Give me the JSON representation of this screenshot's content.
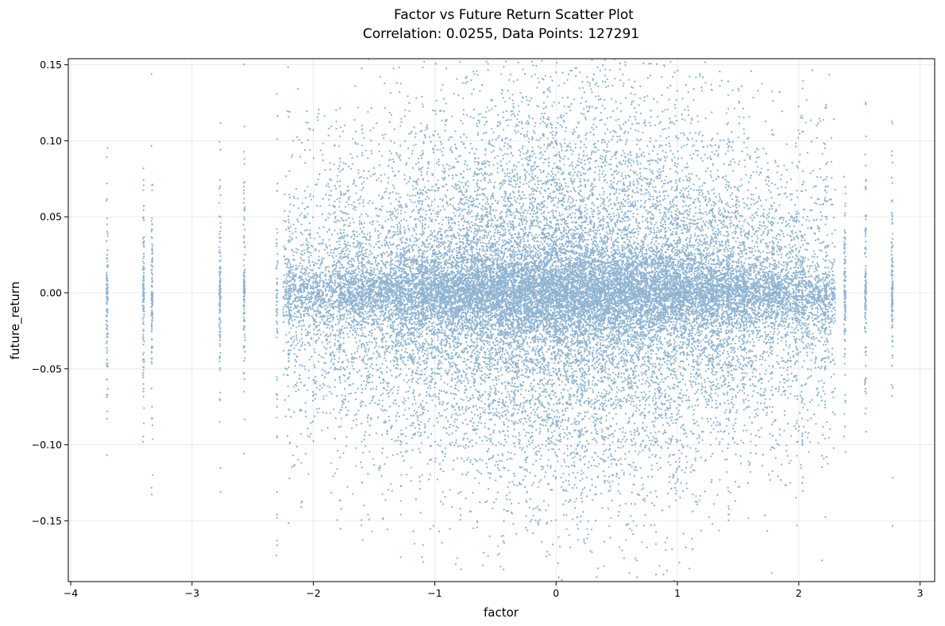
{
  "chart_data": {
    "type": "scatter",
    "title": "Factor vs Future Return Scatter Plot",
    "subtitle": "Correlation: 0.0255, Data Points: 127291",
    "xlabel": "factor",
    "ylabel": "future_return",
    "xlim": [
      -4.02,
      3.12
    ],
    "ylim": [
      -0.19,
      0.154
    ],
    "xticks": [
      -4,
      -3,
      -2,
      -1,
      0,
      1,
      2,
      3
    ],
    "xtick_labels": [
      "−4",
      "−3",
      "−2",
      "−1",
      "0",
      "1",
      "2",
      "3"
    ],
    "yticks": [
      -0.15,
      -0.1,
      -0.05,
      0.0,
      0.05,
      0.1,
      0.15
    ],
    "ytick_labels": [
      "−0.15",
      "−0.10",
      "−0.05",
      "0.00",
      "0.05",
      "0.10",
      "0.15"
    ],
    "grid": true,
    "marker_color": "#4682b4",
    "marker_alpha": 0.6,
    "correlation": 0.0255,
    "n_points": 127291,
    "distinct_factor_values": [
      -3.7,
      -3.4,
      -3.33,
      -2.77,
      -2.57,
      -2.3,
      -2.2,
      -1.78,
      -1.6,
      -1.28,
      -1.1,
      -0.65,
      -0.35,
      -0.1,
      0.2,
      0.9,
      1.28,
      1.42,
      1.55,
      1.78,
      1.98,
      2.03,
      2.22,
      2.38,
      2.55,
      2.77
    ],
    "sample_points": [
      {
        "x": -3.7,
        "y": 0.049
      },
      {
        "x": -3.7,
        "y": 0.045
      },
      {
        "x": -3.7,
        "y": 0.025
      },
      {
        "x": -3.7,
        "y": -0.038
      },
      {
        "x": -3.7,
        "y": -0.044
      },
      {
        "x": -3.4,
        "y": -0.065
      },
      {
        "x": -3.4,
        "y": -0.06
      },
      {
        "x": -3.33,
        "y": 0.049
      },
      {
        "x": -3.33,
        "y": 0.045
      },
      {
        "x": -3.33,
        "y": -0.035
      },
      {
        "x": -2.3,
        "y": -0.131
      },
      {
        "x": -2.3,
        "y": -0.146
      },
      {
        "x": -2.3,
        "y": -0.148
      },
      {
        "x": -2.3,
        "y": -0.163
      },
      {
        "x": -2.3,
        "y": -0.075
      },
      {
        "x": -2.3,
        "y": -0.07
      },
      {
        "x": -2.1,
        "y": -0.112
      },
      {
        "x": -2.1,
        "y": -0.138
      },
      {
        "x": -2.1,
        "y": -0.141
      },
      {
        "x": -1.8,
        "y": 0.077
      },
      {
        "x": -1.65,
        "y": 0.098
      },
      {
        "x": -1.6,
        "y": 0.097
      },
      {
        "x": -1.65,
        "y": -0.114
      },
      {
        "x": -1.55,
        "y": 0.119
      },
      {
        "x": -1.55,
        "y": -0.119
      },
      {
        "x": -1.55,
        "y": -0.146
      },
      {
        "x": -1.28,
        "y": -0.105
      },
      {
        "x": -1.28,
        "y": -0.127
      },
      {
        "x": -1.28,
        "y": -0.137
      },
      {
        "x": -1.28,
        "y": -0.146
      },
      {
        "x": -1.28,
        "y": -0.174
      },
      {
        "x": -1.1,
        "y": 0.124
      },
      {
        "x": -1.12,
        "y": -0.124
      },
      {
        "x": -1.12,
        "y": -0.105
      },
      {
        "x": -0.65,
        "y": -0.117
      },
      {
        "x": -0.35,
        "y": 0.139
      },
      {
        "x": -0.35,
        "y": 0.122
      },
      {
        "x": -0.1,
        "y": 0.132
      },
      {
        "x": -0.1,
        "y": 0.125
      },
      {
        "x": -0.1,
        "y": -0.137
      },
      {
        "x": 0.07,
        "y": 0.101
      },
      {
        "x": 0.4,
        "y": -0.125
      },
      {
        "x": 0.4,
        "y": -0.097
      },
      {
        "x": 1.42,
        "y": 0.139
      },
      {
        "x": 1.42,
        "y": 0.13
      },
      {
        "x": 1.42,
        "y": 0.121
      },
      {
        "x": 1.42,
        "y": 0.101
      },
      {
        "x": 1.78,
        "y": 0.107
      },
      {
        "x": 2.03,
        "y": 0.115
      },
      {
        "x": 2.03,
        "y": 0.106
      },
      {
        "x": 2.03,
        "y": -0.097
      },
      {
        "x": 2.03,
        "y": -0.098
      },
      {
        "x": 2.22,
        "y": 0.05
      },
      {
        "x": 2.38,
        "y": -0.037
      },
      {
        "x": 2.55,
        "y": 0.037
      },
      {
        "x": 2.55,
        "y": 0.03
      },
      {
        "x": 2.77,
        "y": 0.023
      },
      {
        "x": 2.77,
        "y": 0.017
      }
    ]
  }
}
